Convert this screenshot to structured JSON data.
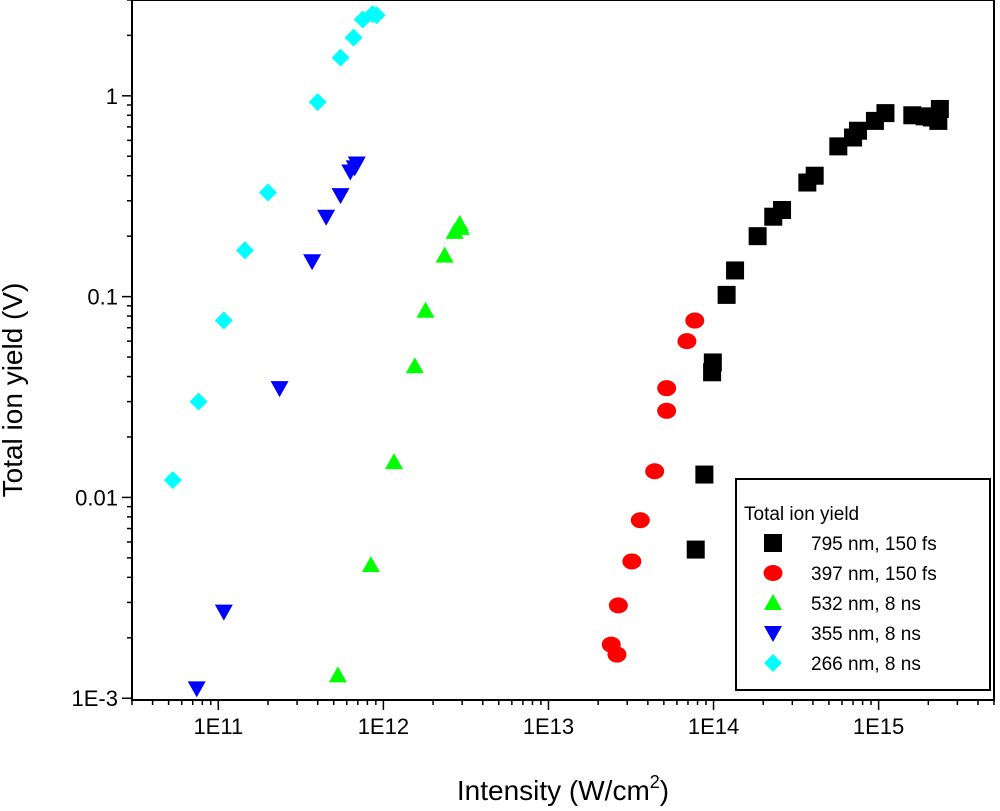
{
  "chart_data": {
    "type": "scatter",
    "xscale": "log",
    "yscale": "log",
    "xlabel": "Intensity (W/cm",
    "xlabel_sup": "2",
    "xlabel_close": ")",
    "ylabel": "Total ion yield (V)",
    "xlim": [
      30000000000.0,
      5000000000000000.0
    ],
    "ylim": [
      0.00098,
      3.0
    ],
    "x_ticks": [
      {
        "value": 100000000000.0,
        "label": "1E11"
      },
      {
        "value": 1000000000000.0,
        "label": "1E12"
      },
      {
        "value": 10000000000000.0,
        "label": "1E13"
      },
      {
        "value": 100000000000000.0,
        "label": "1E14"
      },
      {
        "value": 1000000000000000.0,
        "label": "1E15"
      }
    ],
    "y_ticks": [
      {
        "value": 0.001,
        "label": "1E-3"
      },
      {
        "value": 0.01,
        "label": "0.01"
      },
      {
        "value": 0.1,
        "label": "0.1"
      },
      {
        "value": 1,
        "label": "1"
      }
    ],
    "legend": {
      "title": "Total ion yield",
      "position": "bottom-right"
    },
    "series": [
      {
        "name": "795 nm, 150 fs",
        "marker": "square",
        "color": "#000000",
        "points": [
          [
            78000000000000.0,
            0.0055
          ],
          [
            88000000000000.0,
            0.013
          ],
          [
            98000000000000.0,
            0.042
          ],
          [
            99000000000000.0,
            0.047
          ],
          [
            120000000000000.0,
            0.102
          ],
          [
            135000000000000.0,
            0.135
          ],
          [
            185000000000000.0,
            0.2
          ],
          [
            230000000000000.0,
            0.25
          ],
          [
            260000000000000.0,
            0.27
          ],
          [
            370000000000000.0,
            0.37
          ],
          [
            410000000000000.0,
            0.4
          ],
          [
            570000000000000.0,
            0.56
          ],
          [
            700000000000000.0,
            0.62
          ],
          [
            750000000000000.0,
            0.67
          ],
          [
            950000000000000.0,
            0.75
          ],
          [
            1100000000000000.0,
            0.82
          ],
          [
            1600000000000000.0,
            0.8
          ],
          [
            1900000000000000.0,
            0.79
          ],
          [
            2100000000000000.0,
            0.78
          ],
          [
            2300000000000000.0,
            0.75
          ],
          [
            2350000000000000.0,
            0.86
          ]
        ]
      },
      {
        "name": "397 nm, 150 fs",
        "marker": "circle",
        "color": "#ff0000",
        "points": [
          [
            24000000000000.0,
            0.00185
          ],
          [
            26000000000000.0,
            0.00165
          ],
          [
            26500000000000.0,
            0.0029
          ],
          [
            32000000000000.0,
            0.0048
          ],
          [
            36000000000000.0,
            0.0077
          ],
          [
            44000000000000.0,
            0.0135
          ],
          [
            52000000000000.0,
            0.027
          ],
          [
            52000000000000.0,
            0.035
          ],
          [
            69000000000000.0,
            0.06
          ],
          [
            77000000000000.0,
            0.076
          ]
        ]
      },
      {
        "name": "532 nm, 8 ns",
        "marker": "triangle-up",
        "color": "#00ff00",
        "points": [
          [
            530000000000.0,
            0.0013
          ],
          [
            840000000000.0,
            0.0046
          ],
          [
            1160000000000.0,
            0.015
          ],
          [
            1550000000000.0,
            0.045
          ],
          [
            1800000000000.0,
            0.085
          ],
          [
            2350000000000.0,
            0.16
          ],
          [
            2700000000000.0,
            0.21
          ],
          [
            2900000000000.0,
            0.23
          ],
          [
            2950000000000.0,
            0.22
          ]
        ]
      },
      {
        "name": "355 nm, 8 ns",
        "marker": "triangle-down",
        "color": "#0000ff",
        "points": [
          [
            74000000000.0,
            0.00112
          ],
          [
            108000000000.0,
            0.0027
          ],
          [
            235000000000.0,
            0.035
          ],
          [
            370000000000.0,
            0.15
          ],
          [
            450000000000.0,
            0.25
          ],
          [
            550000000000.0,
            0.32
          ],
          [
            630000000000.0,
            0.42
          ],
          [
            670000000000.0,
            0.44
          ],
          [
            690000000000.0,
            0.46
          ]
        ]
      },
      {
        "name": "266 nm, 8 ns",
        "marker": "diamond",
        "color": "#00ffff",
        "points": [
          [
            53000000000.0,
            0.0122
          ],
          [
            76000000000.0,
            0.03
          ],
          [
            108000000000.0,
            0.076
          ],
          [
            145000000000.0,
            0.17
          ],
          [
            200000000000.0,
            0.33
          ],
          [
            400000000000.0,
            0.93
          ],
          [
            550000000000.0,
            1.55
          ],
          [
            660000000000.0,
            1.95
          ],
          [
            750000000000.0,
            2.4
          ],
          [
            860000000000.0,
            2.55
          ],
          [
            910000000000.0,
            2.52
          ]
        ]
      }
    ]
  }
}
